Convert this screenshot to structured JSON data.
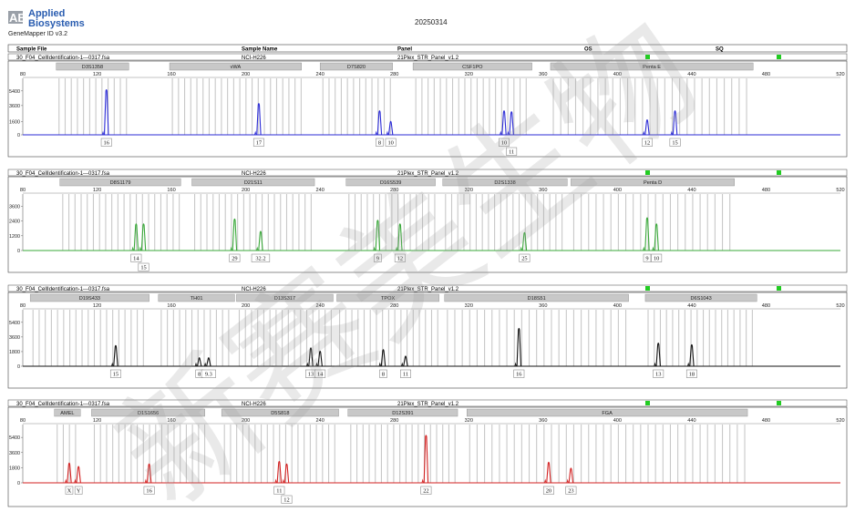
{
  "header": {
    "brand_mark": "AB",
    "brand_line1": "Applied",
    "brand_line2": "Biosystems",
    "app_version": "GeneMapper ID v3.2",
    "date": "20250314"
  },
  "columns": [
    "Sample File",
    "Sample Name",
    "Panel",
    "OS",
    "SQ"
  ],
  "x_ticks": [
    80,
    120,
    160,
    200,
    240,
    280,
    320,
    360,
    400,
    440,
    480,
    520
  ],
  "x_range": [
    80,
    520
  ],
  "colors": {
    "blue": "#2b2bd6",
    "green": "#3aa83a",
    "black": "#111111",
    "red": "#d32222",
    "bin": "#c8c8c8",
    "marker_box": "#c8c8c8",
    "status_ok": "#22cc22"
  },
  "watermark": "新赛美生物",
  "chart_data": [
    {
      "type": "line",
      "dye": "blue",
      "sample_file": "30_F04_CellIdentification-1---0317.fsa",
      "sample_name": "NCI-H226",
      "panel": "21Plex_STR_Panel_v1.2",
      "y_ticks": [
        0,
        1600,
        3600,
        5400
      ],
      "ylim": [
        0,
        6500
      ],
      "loci": [
        {
          "name": "D3S1358",
          "start": 98,
          "end": 137
        },
        {
          "name": "vWA",
          "start": 159,
          "end": 230
        },
        {
          "name": "D7S820",
          "start": 240,
          "end": 279
        },
        {
          "name": "CSF1PO",
          "start": 290,
          "end": 354
        },
        {
          "name": "Penta E",
          "start": 364,
          "end": 473
        }
      ],
      "peaks": [
        {
          "x": 125,
          "h": 5600,
          "label": "16"
        },
        {
          "x": 207,
          "h": 3900,
          "label": "17"
        },
        {
          "x": 272,
          "h": 3000,
          "label": "8"
        },
        {
          "x": 278,
          "h": 1700,
          "label": "10"
        },
        {
          "x": 339,
          "h": 3000,
          "label": "10"
        },
        {
          "x": 343,
          "h": 2900,
          "label": "11"
        },
        {
          "x": 416,
          "h": 1900,
          "label": "12"
        },
        {
          "x": 431,
          "h": 3000,
          "label": "15"
        }
      ]
    },
    {
      "type": "line",
      "dye": "green",
      "sample_file": "30_F04_CellIdentification-1---0317.fsa",
      "sample_name": "NCI-H226",
      "panel": "21Plex_STR_Panel_v1.2",
      "y_ticks": [
        0,
        1200,
        2400,
        3600
      ],
      "ylim": [
        0,
        4300
      ],
      "loci": [
        {
          "name": "D8S1179",
          "start": 100,
          "end": 165
        },
        {
          "name": "D21S11",
          "start": 171,
          "end": 237
        },
        {
          "name": "D16S539",
          "start": 254,
          "end": 302
        },
        {
          "name": "D2S1338",
          "start": 306,
          "end": 373
        },
        {
          "name": "Penta D",
          "start": 375,
          "end": 463
        }
      ],
      "peaks": [
        {
          "x": 141,
          "h": 2200,
          "label": "14"
        },
        {
          "x": 145,
          "h": 2200,
          "label": "15"
        },
        {
          "x": 194,
          "h": 2600,
          "label": "29"
        },
        {
          "x": 208,
          "h": 1600,
          "label": "32.2"
        },
        {
          "x": 271,
          "h": 2500,
          "label": "9"
        },
        {
          "x": 283,
          "h": 2200,
          "label": "12"
        },
        {
          "x": 350,
          "h": 1500,
          "label": "25"
        },
        {
          "x": 416,
          "h": 2700,
          "label": "9"
        },
        {
          "x": 421,
          "h": 2200,
          "label": "10"
        }
      ]
    },
    {
      "type": "line",
      "dye": "black",
      "sample_file": "30_F04_CellIdentification-1---0317.fsa",
      "sample_name": "NCI-H226",
      "panel": "21Plex_STR_Panel_v1.2",
      "y_ticks": [
        0,
        1800,
        3600,
        5400
      ],
      "ylim": [
        0,
        6500
      ],
      "loci": [
        {
          "name": "D19S433",
          "start": 84,
          "end": 148
        },
        {
          "name": "TH01",
          "start": 153,
          "end": 194
        },
        {
          "name": "D13S317",
          "start": 195,
          "end": 247
        },
        {
          "name": "TPOX",
          "start": 249,
          "end": 304
        },
        {
          "name": "D18S51",
          "start": 307,
          "end": 406
        },
        {
          "name": "D6S1043",
          "start": 415,
          "end": 475
        }
      ],
      "peaks": [
        {
          "x": 130,
          "h": 2600,
          "label": "15"
        },
        {
          "x": 175,
          "h": 1100,
          "label": "8"
        },
        {
          "x": 180,
          "h": 1100,
          "label": "9.3"
        },
        {
          "x": 235,
          "h": 2300,
          "label": "13"
        },
        {
          "x": 240,
          "h": 1900,
          "label": "14"
        },
        {
          "x": 274,
          "h": 2100,
          "label": "8"
        },
        {
          "x": 286,
          "h": 1300,
          "label": "11"
        },
        {
          "x": 347,
          "h": 4700,
          "label": "16"
        },
        {
          "x": 422,
          "h": 2900,
          "label": "13"
        },
        {
          "x": 440,
          "h": 2700,
          "label": "18"
        }
      ]
    },
    {
      "type": "line",
      "dye": "red",
      "sample_file": "30_F04_CellIdentification-1---0317.fsa",
      "sample_name": "NCI-H226",
      "panel": "21Plex_STR_Panel_v1.2",
      "y_ticks": [
        0,
        1800,
        3600,
        5400
      ],
      "ylim": [
        0,
        6500
      ],
      "loci": [
        {
          "name": "AMEL",
          "start": 97,
          "end": 111
        },
        {
          "name": "D1S1656",
          "start": 117,
          "end": 178
        },
        {
          "name": "D5S818",
          "start": 187,
          "end": 250
        },
        {
          "name": "D12S391",
          "start": 255,
          "end": 314
        },
        {
          "name": "FGA",
          "start": 319,
          "end": 470
        }
      ],
      "peaks": [
        {
          "x": 105,
          "h": 2400,
          "label": "X"
        },
        {
          "x": 110,
          "h": 2000,
          "label": "Y"
        },
        {
          "x": 148,
          "h": 2300,
          "label": "16"
        },
        {
          "x": 218,
          "h": 2600,
          "label": "11"
        },
        {
          "x": 222,
          "h": 2300,
          "label": "12"
        },
        {
          "x": 297,
          "h": 5700,
          "label": "22"
        },
        {
          "x": 363,
          "h": 2500,
          "label": "20"
        },
        {
          "x": 375,
          "h": 1800,
          "label": "23"
        }
      ]
    }
  ]
}
